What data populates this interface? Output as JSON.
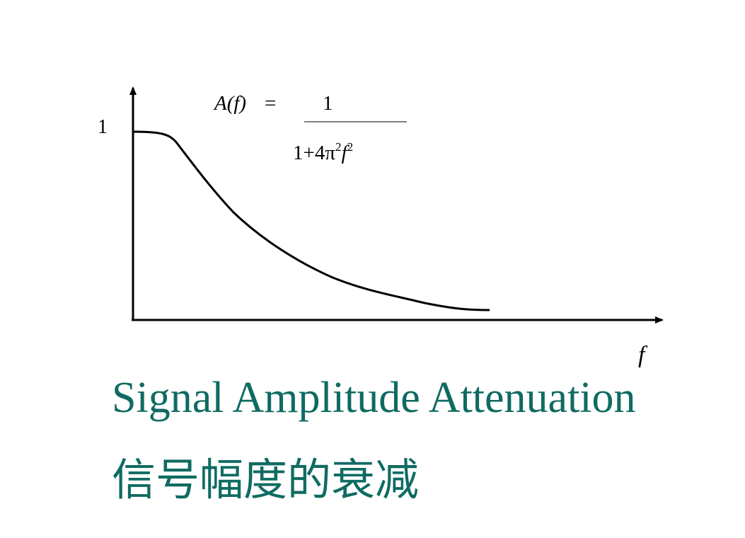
{
  "diagram": {
    "y_axis_tick": "1",
    "x_axis_label": "f",
    "formula": {
      "lhs_name": "A(f)",
      "equals": "=",
      "numerator": "1",
      "denominator_base": "1+4π",
      "denominator_exp1": "2",
      "denominator_var": "f",
      "denominator_exp2": "2"
    }
  },
  "caption": {
    "english": "Signal Amplitude Attenuation",
    "chinese": "信号幅度的衰减"
  }
}
